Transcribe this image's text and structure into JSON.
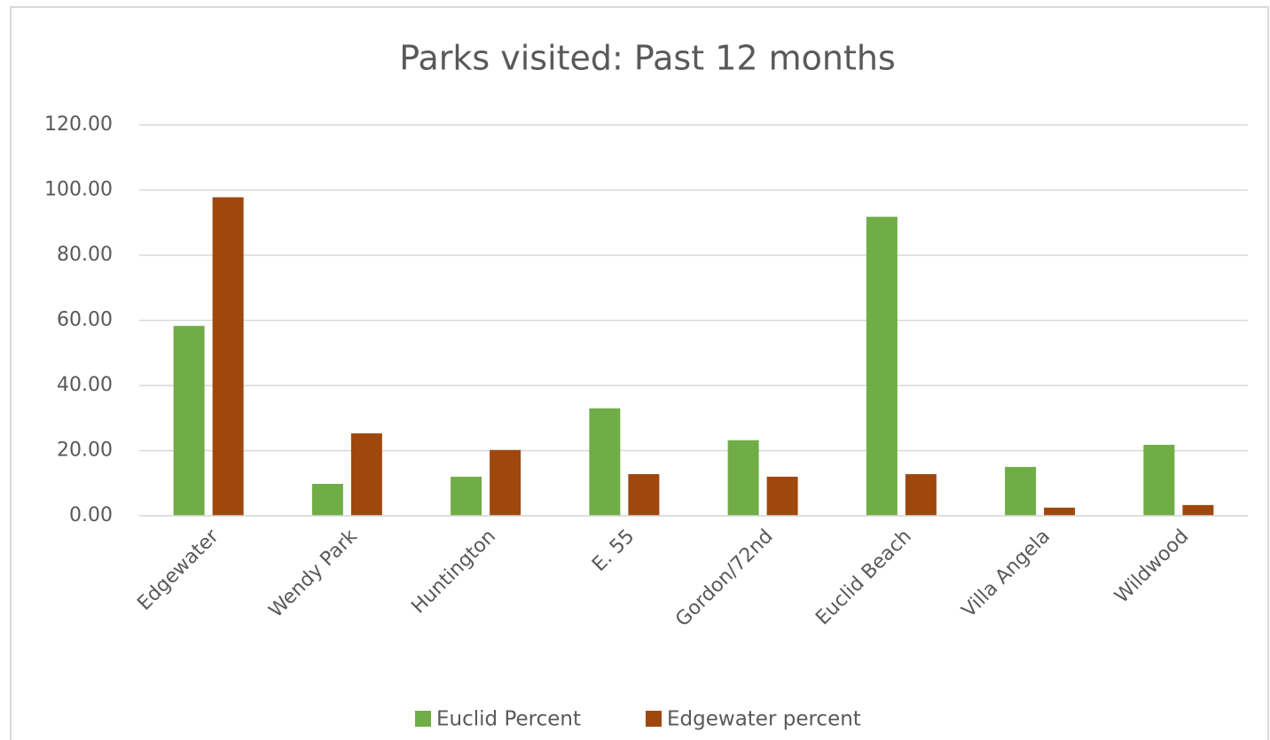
{
  "chart_data": {
    "type": "bar",
    "title": "Parks visited: Past 12 months",
    "categories": [
      "Edgewater",
      "Wendy Park",
      "Huntington",
      "E. 55",
      "Gordon/72nd",
      "Euclid Beach",
      "Villa Angela",
      "Wildwood"
    ],
    "series": [
      {
        "name": "Euclid Percent",
        "color": "#70ad47",
        "values": [
          58.3,
          9.8,
          12.0,
          33.0,
          23.2,
          91.8,
          15.0,
          21.8
        ]
      },
      {
        "name": "Edgewater percent",
        "color": "#9e480e",
        "values": [
          97.8,
          25.3,
          20.2,
          12.8,
          12.0,
          12.8,
          2.5,
          3.3
        ]
      }
    ],
    "ylim": [
      0,
      120
    ],
    "yticks": [
      {
        "value": 0,
        "label": "0.00"
      },
      {
        "value": 20,
        "label": "20.00"
      },
      {
        "value": 40,
        "label": "40.00"
      },
      {
        "value": 60,
        "label": "60.00"
      },
      {
        "value": 80,
        "label": "80.00"
      },
      {
        "value": 100,
        "label": "100.00"
      },
      {
        "value": 120,
        "label": "120.00"
      }
    ],
    "grid": true,
    "legend": "bottom"
  }
}
